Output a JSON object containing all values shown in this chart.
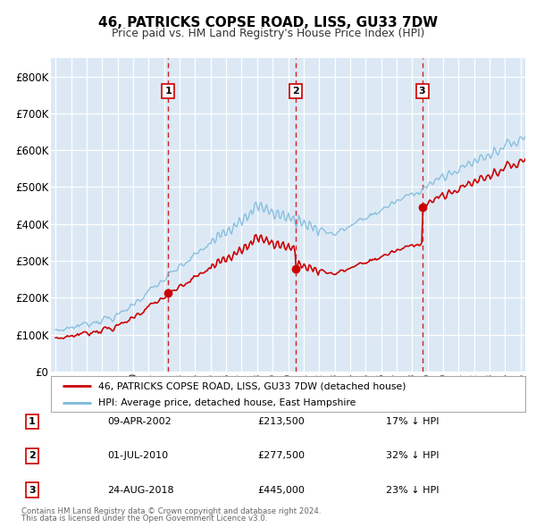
{
  "title": "46, PATRICKS COPSE ROAD, LISS, GU33 7DW",
  "subtitle": "Price paid vs. HM Land Registry's House Price Index (HPI)",
  "ylim": [
    0,
    850000
  ],
  "yticks": [
    0,
    100000,
    200000,
    300000,
    400000,
    500000,
    600000,
    700000,
    800000
  ],
  "ytick_labels": [
    "£0",
    "£100K",
    "£200K",
    "£300K",
    "£400K",
    "£500K",
    "£600K",
    "£700K",
    "£800K"
  ],
  "fig_bg_color": "#ffffff",
  "plot_bg_color": "#dce9f5",
  "grid_color": "#ffffff",
  "hpi_color": "#7ab8db",
  "price_color": "#cc0000",
  "vline_color": "#cc0000",
  "marker_color": "#cc0000",
  "legend_label_price": "46, PATRICKS COPSE ROAD, LISS, GU33 7DW (detached house)",
  "legend_label_hpi": "HPI: Average price, detached house, East Hampshire",
  "transactions": [
    {
      "num": 1,
      "date_x": 2002.27,
      "price": 213500,
      "label": "09-APR-2002",
      "price_str": "£213,500",
      "pct": "17%"
    },
    {
      "num": 2,
      "date_x": 2010.5,
      "price": 277500,
      "label": "01-JUL-2010",
      "price_str": "£277,500",
      "pct": "32%"
    },
    {
      "num": 3,
      "date_x": 2018.65,
      "price": 445000,
      "label": "24-AUG-2018",
      "price_str": "£445,000",
      "pct": "23%"
    }
  ],
  "footer1": "Contains HM Land Registry data © Crown copyright and database right 2024.",
  "footer2": "This data is licensed under the Open Government Licence v3.0.",
  "xlim_start": 1994.7,
  "xlim_end": 2025.3
}
